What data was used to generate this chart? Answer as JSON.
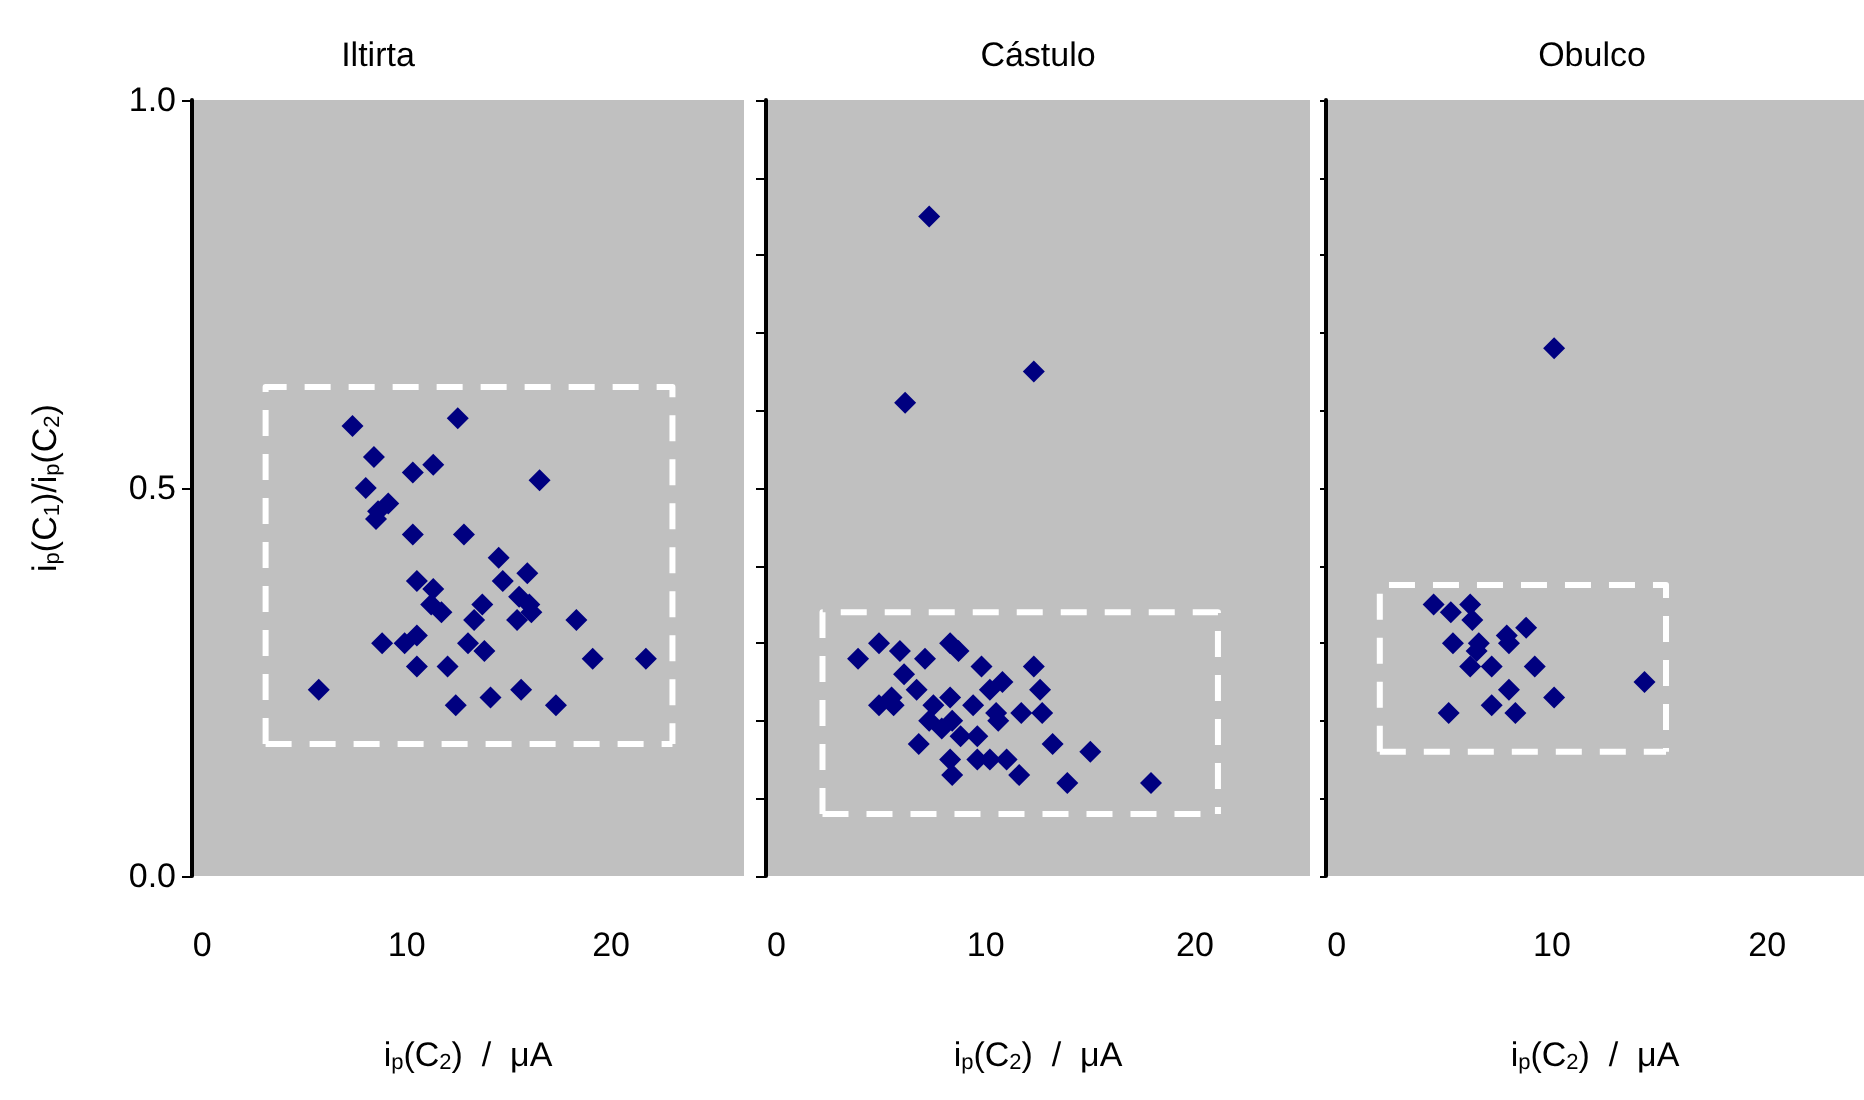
{
  "chart_data": [
    {
      "type": "scatter",
      "title": "Iltirta",
      "xlabel": "i$_{p}$(C$_{2}$)  /  μA",
      "ylabel": "i$_{p}$(C$_{1}$)/i$_{p}$(C$_{2}$)",
      "marker": "diamond",
      "grid": false,
      "xlim": [
        -0.5,
        26.5
      ],
      "xticks": [
        0,
        10,
        20
      ],
      "ylim": [
        0,
        1
      ],
      "yticks": [
        {
          "value": 0,
          "label": "0.0"
        },
        0.5,
        {
          "value": 1,
          "label": "1.0"
        }
      ],
      "series": [
        {
          "color": "#000080",
          "x": [
            7.35,
            12.5,
            8.4,
            11.3,
            10.3,
            16.5,
            8.0,
            9.1,
            8.6,
            8.5,
            10.3,
            12.8,
            14.5,
            14.7,
            15.9,
            10.5,
            11.3,
            15.5,
            13.7,
            11.2,
            16.0,
            11.7,
            13.3,
            15.4,
            16.1,
            18.3,
            8.8,
            9.9,
            10.5,
            13.0,
            13.8,
            19.1,
            21.7,
            10.5,
            12.0,
            5.7,
            15.6,
            12.4,
            14.1,
            17.3
          ],
          "values": [
            0.58,
            0.59,
            0.54,
            0.53,
            0.52,
            0.51,
            0.5,
            0.48,
            0.47,
            0.46,
            0.44,
            0.44,
            0.41,
            0.38,
            0.39,
            0.38,
            0.37,
            0.36,
            0.35,
            0.35,
            0.35,
            0.34,
            0.33,
            0.33,
            0.34,
            0.33,
            0.3,
            0.3,
            0.31,
            0.3,
            0.29,
            0.28,
            0.28,
            0.27,
            0.27,
            0.24,
            0.24,
            0.22,
            0.23,
            0.22
          ]
        },
        {
          "type": "line",
          "color": "#ffffff",
          "line_style": "dashed",
          "marker": "none",
          "x": [
            3.1,
            3.1,
            23,
            23
          ],
          "values": [
            0.17,
            0.63,
            0.63,
            0.17
          ]
        },
        {
          "type": "line",
          "color": "#ffffff",
          "line_style": "dashed",
          "marker": "none",
          "x": [
            3.1,
            23
          ],
          "values": [
            0.17,
            0.17
          ]
        }
      ]
    },
    {
      "type": "scatter",
      "title": "Cástulo",
      "xlabel": "i$_{p}$(C$_{2}$)  /  μA",
      "marker": "diamond",
      "grid": false,
      "tick_labels": "x",
      "xlim": [
        -0.5,
        25.5
      ],
      "xticks": [
        0,
        10,
        20
      ],
      "ylim": [
        0,
        1
      ],
      "yticks": [
        {
          "value": 0,
          "label": null
        },
        {
          "value": 0.1,
          "label": null
        },
        {
          "value": 0.2,
          "label": null
        },
        {
          "value": 0.3,
          "label": null
        },
        {
          "value": 0.4,
          "label": null
        },
        {
          "value": 0.5,
          "label": null
        },
        {
          "value": 0.6,
          "label": null
        },
        {
          "value": 0.7,
          "label": null
        },
        {
          "value": 0.8,
          "label": null
        },
        {
          "value": 0.9,
          "label": null
        },
        {
          "value": 1,
          "label": null
        }
      ],
      "series": [
        {
          "color": "#000080",
          "x": [
            7.3,
            12.3,
            6.15,
            3.9,
            4.9,
            5.9,
            7.1,
            8.3,
            8.7,
            9.8,
            12.3,
            6.1,
            10.8,
            12.6,
            5.5,
            6.7,
            8.3,
            10.2,
            4.9,
            5.6,
            7.5,
            9.4,
            10.5,
            11.7,
            12.7,
            7.3,
            8.4,
            10.6,
            7.9,
            8.8,
            9.6,
            6.8,
            13.2,
            15.0,
            8.3,
            9.6,
            10.2,
            11.0,
            8.4,
            11.6,
            13.9,
            17.9
          ],
          "values": [
            0.85,
            0.65,
            0.61,
            0.28,
            0.3,
            0.29,
            0.28,
            0.3,
            0.29,
            0.27,
            0.27,
            0.26,
            0.25,
            0.24,
            0.23,
            0.24,
            0.23,
            0.24,
            0.22,
            0.22,
            0.22,
            0.22,
            0.21,
            0.21,
            0.21,
            0.2,
            0.2,
            0.2,
            0.19,
            0.18,
            0.18,
            0.17,
            0.17,
            0.16,
            0.15,
            0.15,
            0.15,
            0.15,
            0.13,
            0.13,
            0.12,
            0.12
          ]
        },
        {
          "type": "line",
          "color": "#ffffff",
          "line_style": "dashed",
          "marker": "none",
          "x": [
            2.2,
            2.2,
            21.1,
            21.1
          ],
          "values": [
            0.08,
            0.34,
            0.34,
            0.08
          ]
        },
        {
          "type": "line",
          "color": "#ffffff",
          "line_style": "dashed",
          "marker": "none",
          "x": [
            2.2,
            21.1
          ],
          "values": [
            0.08,
            0.08
          ]
        }
      ]
    },
    {
      "type": "scatter",
      "title": "Obulco",
      "xlabel": "i$_{p}$(C$_{2}$)  /  μA",
      "marker": "diamond",
      "grid": false,
      "tick_labels": "x",
      "xlim": [
        -0.5,
        24.5
      ],
      "xticks": [
        0,
        10,
        20
      ],
      "ylim": [
        0,
        1
      ],
      "yticks": [
        {
          "value": 0,
          "label": null
        },
        {
          "value": 0.1,
          "label": null
        },
        {
          "value": 0.2,
          "label": null
        },
        {
          "value": 0.3,
          "label": null
        },
        {
          "value": 0.4,
          "label": null
        },
        {
          "value": 0.5,
          "label": null
        },
        {
          "value": 0.6,
          "label": null
        },
        {
          "value": 0.7,
          "label": null
        },
        {
          "value": 0.8,
          "label": null
        },
        {
          "value": 0.9,
          "label": null
        },
        {
          "value": 1,
          "label": null
        }
      ],
      "series": [
        {
          "color": "#000080",
          "x": [
            10.1,
            4.5,
            5.3,
            6.2,
            6.3,
            8.8,
            7.9,
            8.0,
            6.6,
            5.4,
            6.5,
            6.2,
            7.2,
            9.2,
            14.3,
            8.0,
            7.2,
            10.1,
            5.2,
            8.3
          ],
          "values": [
            0.68,
            0.35,
            0.34,
            0.35,
            0.33,
            0.32,
            0.31,
            0.3,
            0.3,
            0.3,
            0.29,
            0.27,
            0.27,
            0.27,
            0.25,
            0.24,
            0.22,
            0.23,
            0.21,
            0.21
          ]
        },
        {
          "type": "line",
          "color": "#ffffff",
          "line_style": "dashed",
          "marker": "none",
          "x": [
            2,
            2,
            15.3,
            15.3
          ],
          "values": [
            0.16,
            0.375,
            0.375,
            0.16
          ]
        },
        {
          "type": "line",
          "color": "#ffffff",
          "line_style": "dashed",
          "marker": "none",
          "x": [
            2,
            15.3
          ],
          "values": [
            0.16,
            0.16
          ]
        }
      ]
    }
  ]
}
